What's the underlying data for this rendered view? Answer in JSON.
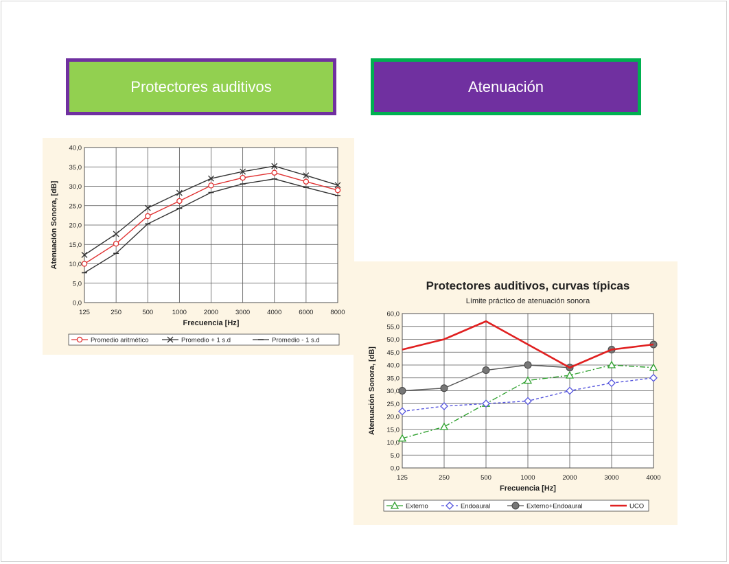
{
  "header": {
    "left_title": "Protectores auditivos",
    "right_title": "Atenuación"
  },
  "colors": {
    "left_box_fill": "#92d050",
    "left_box_border": "#7030a0",
    "right_box_fill": "#7030a0",
    "right_box_border": "#00b050"
  },
  "chart_data": [
    {
      "type": "line",
      "title": "",
      "xlabel": "Frecuencia  [Hz]",
      "ylabel": "Atenuación Sonora, [dB]",
      "categories": [
        "125",
        "250",
        "500",
        "1000",
        "2000",
        "3000",
        "4000",
        "6000",
        "8000"
      ],
      "ylim": [
        0,
        40
      ],
      "y_ticks": [
        "0,0",
        "5,0",
        "10,0",
        "15,0",
        "20,0",
        "25,0",
        "30,0",
        "35,0",
        "40,0"
      ],
      "grid": true,
      "legend_position": "bottom",
      "series": [
        {
          "name": "Promedio aritmético",
          "values": [
            10,
            15.2,
            22.3,
            26.2,
            30.2,
            32.2,
            33.5,
            31.2,
            29
          ],
          "color": "#e03030",
          "marker": "circle"
        },
        {
          "name": "Promedio + 1 s.d",
          "values": [
            12.3,
            17.7,
            24.4,
            28.3,
            32,
            33.8,
            35.2,
            32.8,
            30.3
          ],
          "color": "#333333",
          "marker": "x"
        },
        {
          "name": "Promedio - 1 s.d",
          "values": [
            7.7,
            12.7,
            20.3,
            24.3,
            28.4,
            30.6,
            31.9,
            29.7,
            27.6
          ],
          "color": "#333333",
          "marker": "dash"
        }
      ]
    },
    {
      "type": "line",
      "title": "Protectores auditivos, curvas típicas",
      "subtitle": "Límite práctico de atenuación sonora",
      "xlabel": "Frecuencia  [Hz]",
      "ylabel": "Atenuación Sonora, [dB]",
      "categories": [
        "125",
        "250",
        "500",
        "1000",
        "2000",
        "3000",
        "4000"
      ],
      "ylim": [
        0,
        60
      ],
      "y_ticks": [
        "0,0",
        "5,0",
        "10,0",
        "15,0",
        "20,0",
        "25,0",
        "30,0",
        "35,0",
        "40,0",
        "45,0",
        "50,0",
        "55,0",
        "60,0"
      ],
      "grid": true,
      "legend_position": "bottom",
      "series": [
        {
          "name": "Externo",
          "values": [
            11.5,
            16,
            25,
            34,
            36,
            40,
            39
          ],
          "color": "#2ea02e",
          "marker": "triangle",
          "dash": "8,3,2,3"
        },
        {
          "name": "Endoaural",
          "values": [
            22,
            24,
            25,
            26,
            30,
            33,
            35
          ],
          "color": "#5555dd",
          "marker": "diamond",
          "dash": "4,3"
        },
        {
          "name": "Externo+Endoaural",
          "values": [
            30,
            31,
            38,
            40,
            39,
            46,
            48
          ],
          "color": "#555555",
          "marker": "dot"
        },
        {
          "name": "UCO",
          "values": [
            46,
            50,
            57,
            48,
            39,
            46,
            48
          ],
          "color": "#e02020",
          "marker": "none"
        }
      ]
    }
  ]
}
